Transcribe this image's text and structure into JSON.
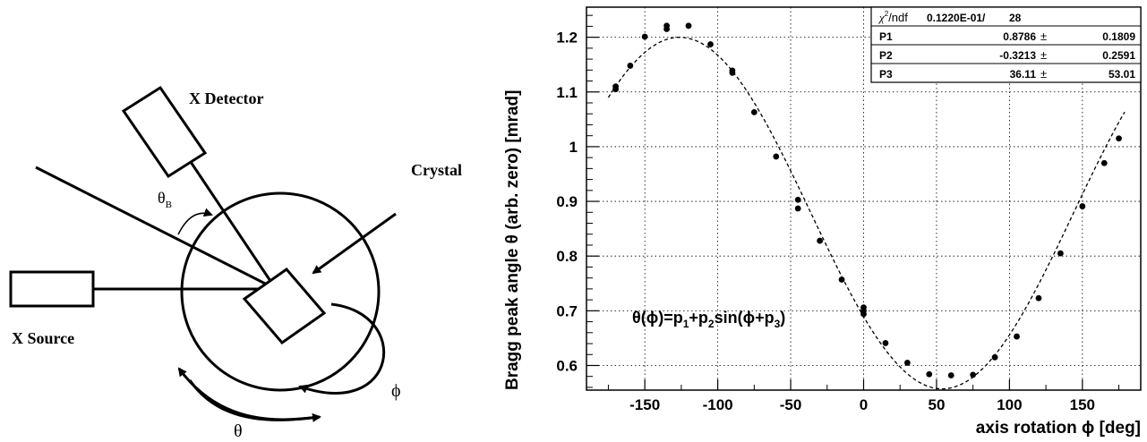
{
  "diagram": {
    "x_detector": "X Detector",
    "crystal": "Crystal",
    "x_source": "X Source",
    "theta_b_symbol": "θ",
    "theta_b_sub": "B",
    "phi_symbol": "ϕ",
    "theta_symbol": "θ"
  },
  "chart_data": {
    "type": "scatter",
    "xlabel": "axis rotation ϕ [deg]",
    "ylabel": "Bragg peak angle θ (arb. zero) [mrad]",
    "xlim": [
      -190,
      190
    ],
    "ylim": [
      0.555,
      1.255
    ],
    "x_ticks": [
      -150,
      -100,
      -50,
      0,
      50,
      100,
      150
    ],
    "x_tick_labels": [
      "-150",
      "-100",
      "-50",
      "0",
      "50",
      "100",
      "150"
    ],
    "y_ticks": [
      0.6,
      0.7,
      0.8,
      0.9,
      1.0,
      1.1,
      1.2
    ],
    "y_tick_labels": [
      "0.6",
      "0.7",
      "0.8",
      "0.9",
      "1",
      "1.1",
      "1.2"
    ],
    "grid": true,
    "points": [
      {
        "x": -170,
        "y": 1.11
      },
      {
        "x": -170,
        "y": 1.105
      },
      {
        "x": -160,
        "y": 1.148
      },
      {
        "x": -150,
        "y": 1.201
      },
      {
        "x": -135,
        "y": 1.221
      },
      {
        "x": -135,
        "y": 1.215
      },
      {
        "x": -120,
        "y": 1.221
      },
      {
        "x": -105,
        "y": 1.187
      },
      {
        "x": -90,
        "y": 1.139
      },
      {
        "x": -90,
        "y": 1.135
      },
      {
        "x": -75,
        "y": 1.063
      },
      {
        "x": -60,
        "y": 0.982
      },
      {
        "x": -45,
        "y": 0.903
      },
      {
        "x": -45,
        "y": 0.887
      },
      {
        "x": -30,
        "y": 0.828
      },
      {
        "x": -15,
        "y": 0.757
      },
      {
        "x": 0,
        "y": 0.706
      },
      {
        "x": 0,
        "y": 0.7
      },
      {
        "x": 0,
        "y": 0.694
      },
      {
        "x": 15,
        "y": 0.641
      },
      {
        "x": 30,
        "y": 0.605
      },
      {
        "x": 45,
        "y": 0.584
      },
      {
        "x": 60,
        "y": 0.582
      },
      {
        "x": 75,
        "y": 0.583
      },
      {
        "x": 90,
        "y": 0.615
      },
      {
        "x": 105,
        "y": 0.653
      },
      {
        "x": 120,
        "y": 0.723
      },
      {
        "x": 135,
        "y": 0.805
      },
      {
        "x": 150,
        "y": 0.891
      },
      {
        "x": 165,
        "y": 0.97
      },
      {
        "x": 175,
        "y": 1.015
      }
    ],
    "fit": {
      "function": "sin",
      "p1": 0.8786,
      "p2": -0.3213,
      "p3": 36.11,
      "x_range": [
        -175,
        180
      ]
    },
    "formula_label": {
      "lhs": "θ(ϕ)=p",
      "s1": "1",
      "mid": "+p",
      "s2": "2",
      "rest": "sin(ϕ+p",
      "s3": "3",
      "close": ")"
    },
    "stats": {
      "chi2_symbol": "χ",
      "chi2_sup": "2",
      "chi2_label": "/ndf",
      "chi2_value": "0.1220E-01/",
      "ndf": "28",
      "rows": [
        {
          "name": "P1",
          "value": "0.8786",
          "pm": "±",
          "error": "0.1809"
        },
        {
          "name": "P2",
          "value": "-0.3213",
          "pm": "±",
          "error": "0.2591"
        },
        {
          "name": "P3",
          "value": "36.11",
          "pm": "±",
          "error": "53.01"
        }
      ]
    }
  }
}
